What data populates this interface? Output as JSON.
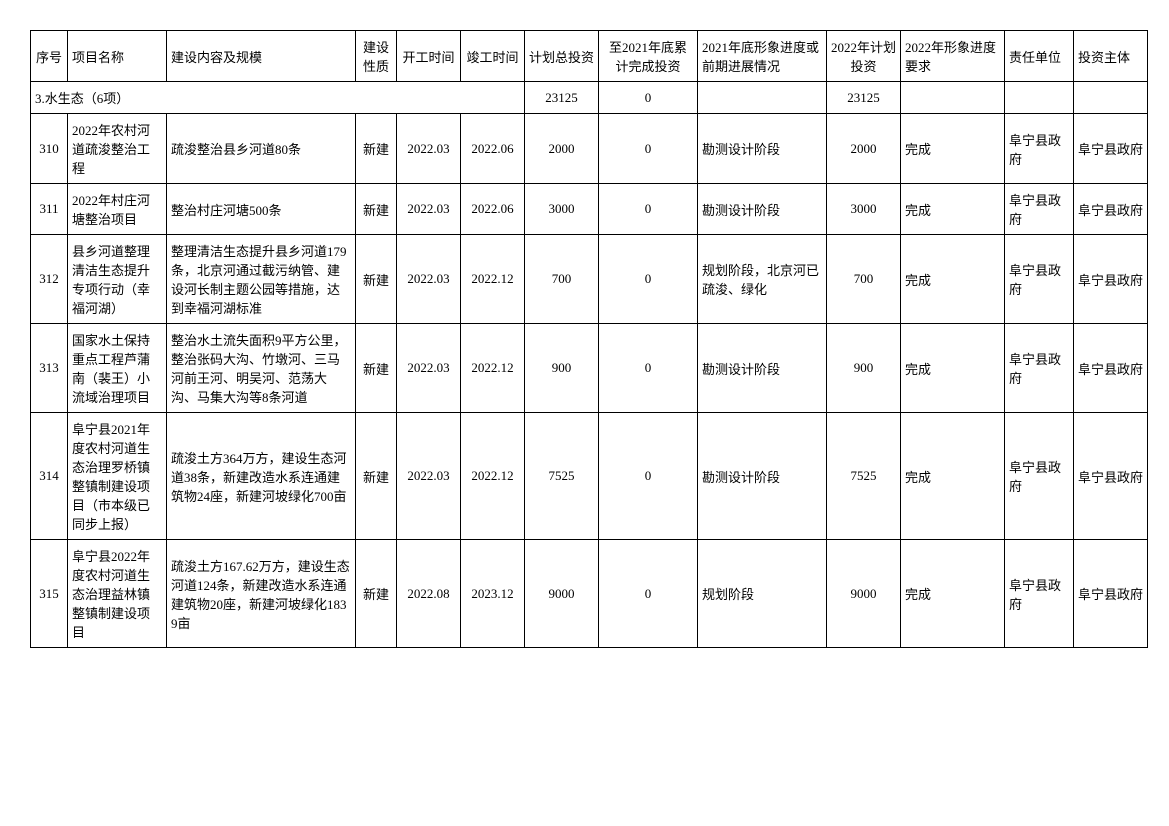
{
  "headers": {
    "seq": "序号",
    "name": "项目名称",
    "content": "建设内容及规模",
    "nature": "建设性质",
    "start": "开工时间",
    "end": "竣工时间",
    "totalInvest": "计划总投资",
    "doneInvest": "至2021年底累计完成投资",
    "status": "2021年底形象进度或前期进展情况",
    "plan2022": "2022年计划投资",
    "req2022": "2022年形象进度要求",
    "unit": "责任单位",
    "owner": "投资主体"
  },
  "section": {
    "title": "3.水生态（6项）",
    "totalInvest": "23125",
    "doneInvest": "0",
    "plan2022": "23125"
  },
  "rows": [
    {
      "seq": "310",
      "name": "2022年农村河道疏浚整治工程",
      "content": "疏浚整治县乡河道80条",
      "nature": "新建",
      "start": "2022.03",
      "end": "2022.06",
      "totalInvest": "2000",
      "doneInvest": "0",
      "status": "勘测设计阶段",
      "plan2022": "2000",
      "req2022": "完成",
      "unit": "阜宁县政府",
      "owner": "阜宁县政府"
    },
    {
      "seq": "311",
      "name": "2022年村庄河塘整治项目",
      "content": "整治村庄河塘500条",
      "nature": "新建",
      "start": "2022.03",
      "end": "2022.06",
      "totalInvest": "3000",
      "doneInvest": "0",
      "status": "勘测设计阶段",
      "plan2022": "3000",
      "req2022": "完成",
      "unit": "阜宁县政府",
      "owner": "阜宁县政府"
    },
    {
      "seq": "312",
      "name": "县乡河道整理清洁生态提升专项行动（幸福河湖）",
      "content": "整理清洁生态提升县乡河道179条，北京河通过截污纳管、建设河长制主题公园等措施，达到幸福河湖标准",
      "nature": "新建",
      "start": "2022.03",
      "end": "2022.12",
      "totalInvest": "700",
      "doneInvest": "0",
      "status": "规划阶段，北京河已疏浚、绿化",
      "plan2022": "700",
      "req2022": "完成",
      "unit": "阜宁县政府",
      "owner": "阜宁县政府"
    },
    {
      "seq": "313",
      "name": "国家水土保持重点工程芦蒲南（裴王）小流域治理项目",
      "content": "整治水土流失面积9平方公里，整治张码大沟、竹墩河、三马河前王河、明吴河、范荡大沟、马集大沟等8条河道",
      "nature": "新建",
      "start": "2022.03",
      "end": "2022.12",
      "totalInvest": "900",
      "doneInvest": "0",
      "status": "勘测设计阶段",
      "plan2022": "900",
      "req2022": "完成",
      "unit": "阜宁县政府",
      "owner": "阜宁县政府"
    },
    {
      "seq": "314",
      "name": "阜宁县2021年度农村河道生态治理罗桥镇整镇制建设项目（市本级已同步上报）",
      "content": "疏浚土方364万方，建设生态河道38条，新建改造水系连通建筑物24座，新建河坡绿化700亩",
      "nature": "新建",
      "start": "2022.03",
      "end": "2022.12",
      "totalInvest": "7525",
      "doneInvest": "0",
      "status": "勘测设计阶段",
      "plan2022": "7525",
      "req2022": "完成",
      "unit": "阜宁县政府",
      "owner": "阜宁县政府"
    },
    {
      "seq": "315",
      "name": "阜宁县2022年度农村河道生态治理益林镇整镇制建设项目",
      "content": "疏浚土方167.62万方，建设生态河道124条，新建改造水系连通建筑物20座，新建河坡绿化1839亩",
      "nature": "新建",
      "start": "2022.08",
      "end": "2023.12",
      "totalInvest": "9000",
      "doneInvest": "0",
      "status": "规划阶段",
      "plan2022": "9000",
      "req2022": "完成",
      "unit": "阜宁县政府",
      "owner": "阜宁县政府"
    }
  ]
}
